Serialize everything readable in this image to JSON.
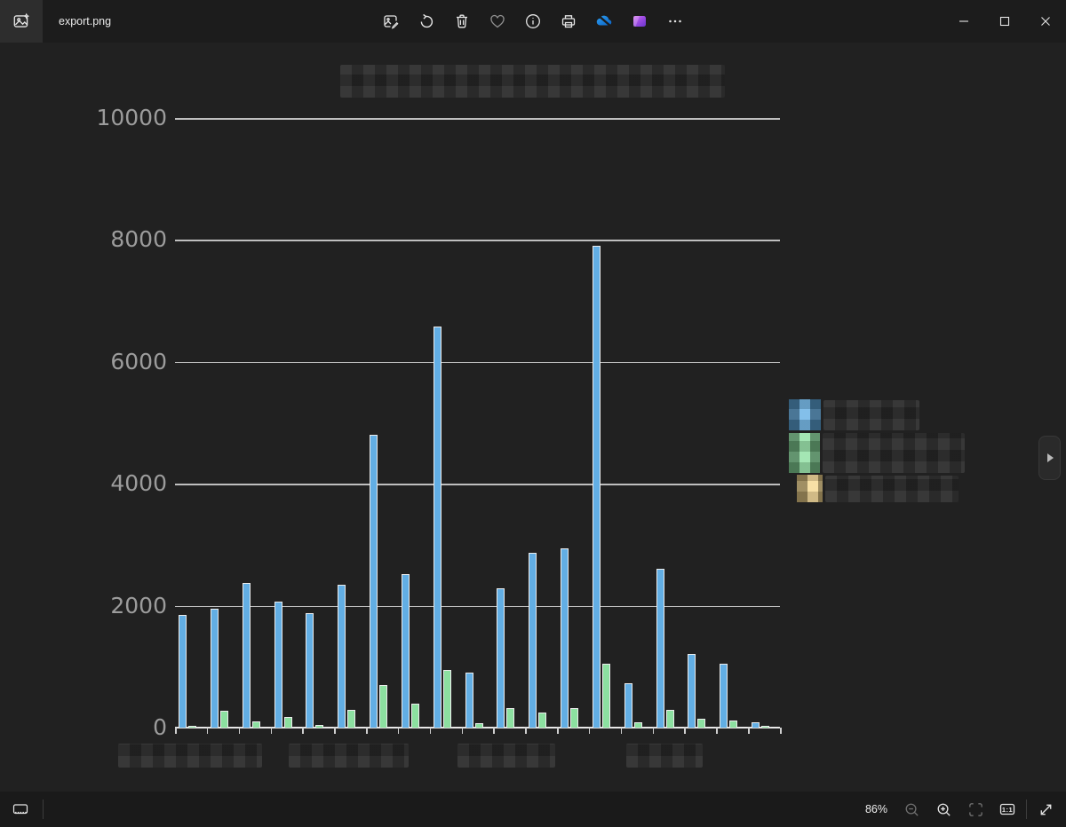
{
  "window": {
    "title": "export.png",
    "controls": {
      "minimize": "minimize",
      "maximize": "maximize",
      "close": "close"
    }
  },
  "toolbar": {
    "icons": [
      "edit-image",
      "rotate",
      "delete",
      "favorite",
      "info",
      "print",
      "onedrive-unavailable",
      "clipchamp",
      "more-options"
    ]
  },
  "statusbar": {
    "zoom_level": "86%",
    "actual_size_label": "1:1",
    "icons": [
      "filmstrip-toggle",
      "zoom-out",
      "zoom-in",
      "fit-to-window",
      "actual-size",
      "fullscreen"
    ]
  },
  "legend": {
    "note": "three legend entries, text labels pixelated/blurred",
    "items": [
      {
        "label": "",
        "redacted": true,
        "color": "#62aee4"
      },
      {
        "label": "",
        "redacted": true,
        "color": "#8ce0a0"
      },
      {
        "label": "",
        "redacted": true,
        "color": "#f5d88f"
      }
    ]
  },
  "chart_data": {
    "type": "bar",
    "title": "",
    "title_redacted": true,
    "categories": null,
    "x_axis_label_blocks_redacted": 4,
    "n_groups": 19,
    "series": [
      {
        "name": "series-1 (label blurred, blue)",
        "color": "#62aee4",
        "values": [
          1850,
          1950,
          2370,
          2070,
          1880,
          2340,
          4800,
          2520,
          6580,
          900,
          2290,
          2870,
          2940,
          7900,
          730,
          2610,
          1210,
          1050,
          90
        ]
      },
      {
        "name": "series-2 (label blurred, green)",
        "color": "#8ce0a0",
        "values": [
          30,
          280,
          100,
          175,
          45,
          290,
          700,
          390,
          950,
          70,
          320,
          250,
          320,
          1050,
          85,
          290,
          145,
          120,
          30
        ]
      },
      {
        "name": "series-3 (label blurred, yellow)",
        "color": "#f5d88f",
        "values": [
          20,
          20,
          20,
          20,
          20,
          20,
          20,
          20,
          20,
          20,
          20,
          20,
          20,
          20,
          20,
          20,
          20,
          20,
          20
        ]
      }
    ],
    "ylim": [
      0,
      10000
    ],
    "yticks": [
      0,
      2000,
      4000,
      6000,
      8000,
      10000
    ],
    "grid": true,
    "legend_position": "right",
    "background": "#212121"
  }
}
